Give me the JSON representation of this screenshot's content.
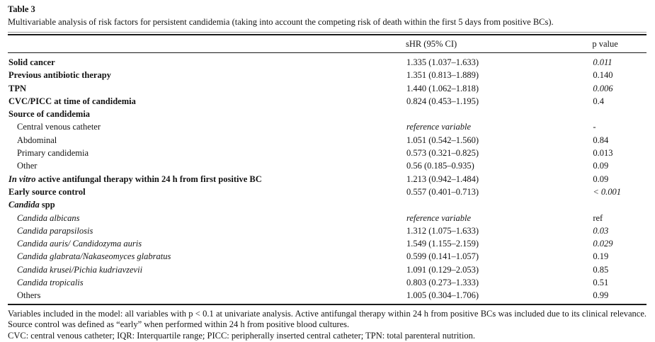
{
  "table": {
    "label": "Table 3",
    "caption": "Multivariable analysis of risk factors for persistent candidemia (taking into account the competing risk of death within the first 5 days from positive BCs).",
    "columns": {
      "shr": "sHR (95% CI)",
      "p": "p value"
    },
    "rows": [
      {
        "label": "Solid cancer",
        "shr": "1.335 (1.037–1.633)",
        "p": "0.011"
      },
      {
        "label": "Previous antibiotic therapy",
        "shr": "1.351 (0.813–1.889)",
        "p": "0.140"
      },
      {
        "label": "TPN",
        "shr": "1.440 (1.062–1.818)",
        "p": "0.006"
      },
      {
        "label": "CVC/PICC at time of candidemia",
        "shr": "0.824 (0.453–1.195)",
        "p": "0.4"
      },
      {
        "label": "Source of candidemia",
        "shr": "",
        "p": ""
      },
      {
        "label": "Central venous catheter",
        "shr": "reference variable",
        "p": "-"
      },
      {
        "label": "Abdominal",
        "shr": "1.051 (0.542–1.560)",
        "p": "0.84"
      },
      {
        "label": "Primary candidemia",
        "shr": "0.573 (0.321–0.825)",
        "p": "0.013"
      },
      {
        "label": "Other",
        "shr": "0.56 (0.185–0.935)",
        "p": "0.09"
      },
      {
        "label_em": "In vitro",
        "label_rest": " active antifungal therapy within 24 h from first positive BC",
        "shr": "1.213 (0.942–1.484)",
        "p": "0.09"
      },
      {
        "label": "Early source control",
        "shr": "0.557 (0.401–0.713)",
        "p": "< 0.001"
      },
      {
        "label_em": "Candida",
        "label_rest": " spp",
        "shr": "",
        "p": ""
      },
      {
        "label": "Candida albicans",
        "shr": "reference variable",
        "p": "ref"
      },
      {
        "label": "Candida parapsilosis",
        "shr": "1.312 (1.075–1.633)",
        "p": "0.03"
      },
      {
        "label": "Candida auris/ Candidozyma auris",
        "shr": "1.549 (1.155–2.159)",
        "p": "0.029"
      },
      {
        "label": "Candida glabrata/Nakaseomyces glabratus",
        "shr": "0.599 (0.141–1.057)",
        "p": "0.19"
      },
      {
        "label": "Candida krusei/Pichia kudriavzevii",
        "shr": "1.091 (0.129–2.053)",
        "p": "0.85"
      },
      {
        "label": "Candida tropicalis",
        "shr": "0.803 (0.273–1.333)",
        "p": "0.51"
      },
      {
        "label": "Others",
        "shr": "1.005 (0.304–1.706)",
        "p": "0.99"
      }
    ],
    "footnotes": [
      "Variables included in the model: all variables with p < 0.1 at univariate analysis. Active antifungal therapy within 24 h from positive BCs was included due to its clinical relevance. Source control was defined as “early” when performed within 24 h from positive blood cultures.",
      "CVC: central venous catheter; IQR: Interquartile range; PICC: peripherally inserted central catheter; TPN: total parenteral nutrition."
    ]
  }
}
